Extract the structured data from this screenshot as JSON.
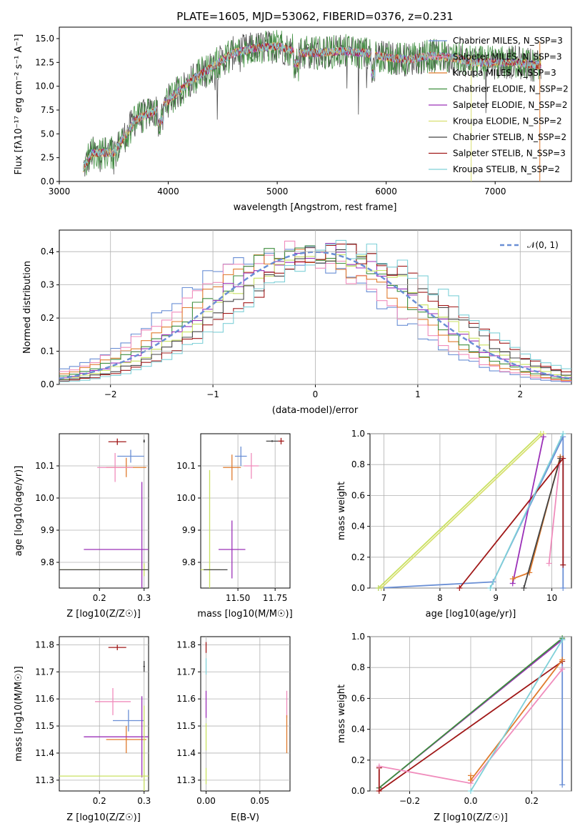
{
  "chart_data": [
    {
      "type": "line",
      "id": "spectrum",
      "title": "PLATE=1605, MJD=53062, FIBERID=0376, z=0.231",
      "xlabel": "wavelength [Angstrom, rest frame]",
      "ylabel": "Flux [fλ10⁻¹⁷ erg cm⁻² s⁻¹ A⁻¹]",
      "xlim": [
        3000,
        7700
      ],
      "ylim": [
        0,
        16.2
      ],
      "xticks": [
        "3000",
        "4000",
        "5000",
        "6000",
        "7000"
      ],
      "yticks": [
        "0.0",
        "2.5",
        "5.0",
        "7.5",
        "10.0",
        "12.5",
        "15.0"
      ],
      "legend_position": "top-right",
      "continuum_x": [
        3200,
        3300,
        3500,
        3700,
        3900,
        4000,
        4200,
        4400,
        4600,
        4800,
        5000,
        5200,
        5400,
        5600,
        5800,
        6000,
        6200,
        6400,
        6600,
        6800,
        7000,
        7200,
        7400
      ],
      "continuum_y": [
        1.0,
        3.0,
        3.0,
        6.5,
        7.5,
        8.5,
        10.5,
        12.0,
        13.5,
        14.0,
        14.2,
        13.5,
        13.5,
        13.7,
        13.5,
        13.0,
        12.8,
        13.2,
        13.0,
        12.5,
        12.5,
        12.5,
        12.2
      ],
      "series": [
        {
          "name": "Chabrier MILES, N_SSP=3",
          "color": "#6a8fd5"
        },
        {
          "name": "Salpeter MILES, N_SSP=3",
          "color": "#f08cbc"
        },
        {
          "name": "Kroupa MILES, N_SSP=3",
          "color": "#e07b2e"
        },
        {
          "name": "Chabrier ELODIE, N_SSP=2",
          "color": "#3e8e3e"
        },
        {
          "name": "Salpeter ELODIE, N_SSP=2",
          "color": "#9b30b8"
        },
        {
          "name": "Kroupa ELODIE, N_SSP=2",
          "color": "#d8e070"
        },
        {
          "name": "Chabrier STELIB, N_SSP=2",
          "color": "#444444"
        },
        {
          "name": "Salpeter STELIB, N_SSP=3",
          "color": "#a01818"
        },
        {
          "name": "Kroupa STELIB, N_SSP=2",
          "color": "#7fd0d8"
        }
      ]
    },
    {
      "type": "line",
      "id": "residuals",
      "xlabel": "(data-model)/error",
      "ylabel": "Normed distribution",
      "xlim": [
        -2.5,
        2.5
      ],
      "ylim": [
        0,
        0.465
      ],
      "xticks": [
        "−2",
        "−1",
        "0",
        "1",
        "2"
      ],
      "yticks": [
        "0.0",
        "0.1",
        "0.2",
        "0.3",
        "0.4"
      ],
      "grid": true,
      "legend_position": "top-right",
      "reference_curve": {
        "name": "𝒩(0, 1)",
        "mean": 0,
        "sigma": 1,
        "color": "#6a8fd5",
        "dash": true
      },
      "histogram_series_colors": [
        "#6a8fd5",
        "#f08cbc",
        "#e07b2e",
        "#3e8e3e",
        "#9b30b8",
        "#c8e060",
        "#444444",
        "#a01818",
        "#7fd0d8"
      ]
    },
    {
      "type": "scatter",
      "id": "age-vs-Z",
      "xlabel": "Z [log10(Z/Z☉)]",
      "ylabel": "age  [log10(age/yr)]",
      "xlim": [
        0.11,
        0.31
      ],
      "ylim": [
        9.72,
        10.2
      ],
      "xticks": [
        "0.2",
        "0.3"
      ],
      "yticks": [
        "9.8",
        "9.9",
        "10.0",
        "10.1"
      ],
      "grid": true,
      "points": [
        {
          "x": 0.24,
          "y": 10.175,
          "xerr": 0.02,
          "yerr": 0.01,
          "color": "#a01818"
        },
        {
          "x": 0.27,
          "y": 10.13,
          "xerr": 0.03,
          "yerr": 0.02,
          "color": "#6a8fd5"
        },
        {
          "x": 0.26,
          "y": 10.095,
          "xerr": 0.045,
          "yerr": 0.03,
          "color": "#e07b2e"
        },
        {
          "x": 0.235,
          "y": 10.095,
          "xerr": 0.04,
          "yerr": 0.045,
          "color": "#f08cbc"
        },
        {
          "x": 0.3,
          "y": 10.177,
          "xerr": 0.002,
          "yerr": 0.005,
          "color": "#444444"
        },
        {
          "x": 0.295,
          "y": 9.84,
          "xerr": 0.13,
          "yerr": 0.21,
          "color": "#9b30b8"
        },
        {
          "x": 0.3,
          "y": 9.777,
          "xerr": 0.19,
          "yerr": 0.02,
          "color": "#c8e060"
        },
        {
          "x": 0.297,
          "y": 9.777,
          "xerr": 0.19,
          "yerr": 0.0,
          "color": "#444444"
        }
      ]
    },
    {
      "type": "scatter",
      "id": "age-vs-mass",
      "xlabel": "mass [log10(M/M☉)]",
      "ylabel": "",
      "xlim": [
        11.25,
        11.85
      ],
      "ylim": [
        9.72,
        10.2
      ],
      "xticks": [
        "11.50",
        "11.75"
      ],
      "yticks": [
        "9.8",
        "9.9",
        "10.0",
        "10.1"
      ],
      "grid": true,
      "points": [
        {
          "x": 11.79,
          "y": 10.177,
          "xerr": 0.02,
          "yerr": 0.01,
          "color": "#a01818"
        },
        {
          "x": 11.73,
          "y": 10.177,
          "xerr": 0.04,
          "yerr": 0.003,
          "color": "#444444"
        },
        {
          "x": 11.52,
          "y": 10.13,
          "xerr": 0.04,
          "yerr": 0.03,
          "color": "#6a8fd5"
        },
        {
          "x": 11.46,
          "y": 10.095,
          "xerr": 0.06,
          "yerr": 0.04,
          "color": "#e07b2e"
        },
        {
          "x": 11.59,
          "y": 10.1,
          "xerr": 0.05,
          "yerr": 0.04,
          "color": "#f08cbc"
        },
        {
          "x": 11.46,
          "y": 9.84,
          "xerr": 0.09,
          "yerr": 0.09,
          "color": "#9b30b8"
        },
        {
          "x": 11.31,
          "y": 9.777,
          "xerr": 0.07,
          "yerr": 0.31,
          "color": "#c8e060"
        },
        {
          "x": 11.35,
          "y": 9.777,
          "xerr": 0.08,
          "yerr": 0.0,
          "color": "#444444"
        }
      ]
    },
    {
      "type": "line",
      "id": "massweight-vs-age",
      "xlabel": "age  [log10(age/yr)]",
      "ylabel": "mass weight",
      "xlim": [
        6.75,
        10.35
      ],
      "ylim": [
        0,
        1.0
      ],
      "xticks": [
        "7",
        "8",
        "9",
        "10"
      ],
      "yticks": [
        "0.0",
        "0.2",
        "0.4",
        "0.6",
        "0.8",
        "1.0"
      ],
      "grid": true,
      "series": [
        {
          "color": "#6a8fd5",
          "x": [
            6.9,
            8.95,
            10.2,
            10.2
          ],
          "y": [
            0.0,
            0.04,
            0.98,
            0.0
          ]
        },
        {
          "color": "#c8e060",
          "x": [
            6.9,
            9.8
          ],
          "y": [
            0.0,
            1.0
          ]
        },
        {
          "color": "#d8e070",
          "x": [
            6.95,
            9.85
          ],
          "y": [
            0.0,
            1.0
          ]
        },
        {
          "color": "#9b30b8",
          "x": [
            9.3,
            9.85
          ],
          "y": [
            0.03,
            0.98
          ]
        },
        {
          "color": "#e07b2e",
          "x": [
            9.3,
            9.6,
            10.15
          ],
          "y": [
            0.06,
            0.1,
            0.85
          ]
        },
        {
          "color": "#f08cbc",
          "x": [
            9.95,
            10.15
          ],
          "y": [
            0.16,
            0.84
          ]
        },
        {
          "color": "#444444",
          "x": [
            9.5,
            10.15
          ],
          "y": [
            0.0,
            0.84
          ]
        },
        {
          "color": "#a01818",
          "x": [
            8.35,
            10.2,
            10.2
          ],
          "y": [
            0.0,
            0.84,
            0.15
          ]
        },
        {
          "color": "#7fd0d8",
          "x": [
            8.9,
            10.2
          ],
          "y": [
            0.0,
            1.0
          ]
        }
      ]
    },
    {
      "type": "scatter",
      "id": "mass-vs-Z",
      "xlabel": "Z [log10(Z/Z☉)]",
      "ylabel": "mass [log10(M/M☉)]",
      "xlim": [
        0.11,
        0.31
      ],
      "ylim": [
        11.26,
        11.83
      ],
      "xticks": [
        "0.2",
        "0.3"
      ],
      "yticks": [
        "11.3",
        "11.4",
        "11.5",
        "11.6",
        "11.7",
        "11.8"
      ],
      "grid": true,
      "points": [
        {
          "x": 0.24,
          "y": 11.79,
          "xerr": 0.02,
          "yerr": 0.01,
          "color": "#a01818"
        },
        {
          "x": 0.3,
          "y": 11.72,
          "xerr": 0.002,
          "yerr": 0.02,
          "color": "#444444"
        },
        {
          "x": 0.265,
          "y": 11.52,
          "xerr": 0.035,
          "yerr": 0.04,
          "color": "#6a8fd5"
        },
        {
          "x": 0.26,
          "y": 11.45,
          "xerr": 0.045,
          "yerr": 0.05,
          "color": "#e07b2e"
        },
        {
          "x": 0.23,
          "y": 11.59,
          "xerr": 0.04,
          "yerr": 0.05,
          "color": "#f08cbc"
        },
        {
          "x": 0.295,
          "y": 11.46,
          "xerr": 0.13,
          "yerr": 0.15,
          "color": "#9b30b8"
        },
        {
          "x": 0.3,
          "y": 11.315,
          "xerr": 0.19,
          "yerr": 0.26,
          "color": "#c8e060"
        }
      ]
    },
    {
      "type": "scatter",
      "id": "mass-vs-EBV",
      "xlabel": "E(B-V)",
      "ylabel": "",
      "xlim": [
        -0.005,
        0.078
      ],
      "ylim": [
        11.26,
        11.83
      ],
      "xticks": [
        "0.00",
        "0.05"
      ],
      "yticks": [
        "11.3",
        "11.4",
        "11.5",
        "11.6",
        "11.7",
        "11.8"
      ],
      "grid": true,
      "points": [
        {
          "x": 0.0,
          "y": 11.79,
          "xerr": 0.0,
          "yerr": 0.02,
          "color": "#a01818"
        },
        {
          "x": 0.0,
          "y": 11.72,
          "xerr": 0.0,
          "yerr": 0.03,
          "color": "#7fd0d8"
        },
        {
          "x": 0.0,
          "y": 11.58,
          "xerr": 0.0,
          "yerr": 0.05,
          "color": "#9b30b8"
        },
        {
          "x": 0.0,
          "y": 11.46,
          "xerr": 0.0,
          "yerr": 0.05,
          "color": "#c8e060"
        },
        {
          "x": 0.0,
          "y": 11.315,
          "xerr": 0.0,
          "yerr": 0.03,
          "color": "#c8e060"
        },
        {
          "x": 0.075,
          "y": 11.58,
          "xerr": 0.0,
          "yerr": 0.05,
          "color": "#f08cbc"
        },
        {
          "x": 0.075,
          "y": 11.47,
          "xerr": 0.0,
          "yerr": 0.07,
          "color": "#e07b2e"
        }
      ]
    },
    {
      "type": "line",
      "id": "massweight-vs-Z",
      "xlabel": "Z [log10(Z/Z☉)]",
      "ylabel": "mass weight",
      "xlim": [
        -0.33,
        0.33
      ],
      "ylim": [
        0,
        1.0
      ],
      "xticks": [
        "−0.2",
        "0.0",
        "0.2"
      ],
      "yticks": [
        "0.0",
        "0.2",
        "0.4",
        "0.6",
        "0.8",
        "1.0"
      ],
      "grid": true,
      "series": [
        {
          "color": "#9b30b8",
          "x": [
            -0.3,
            0.3
          ],
          "y": [
            0.02,
            0.98
          ]
        },
        {
          "color": "#3e8e3e",
          "x": [
            -0.3,
            0.3
          ],
          "y": [
            0.02,
            0.99
          ]
        },
        {
          "color": "#6a8fd5",
          "x": [
            0.3,
            0.3
          ],
          "y": [
            0.98,
            0.04
          ]
        },
        {
          "color": "#a01818",
          "x": [
            -0.3,
            -0.3,
            0.3
          ],
          "y": [
            0.15,
            0.0,
            0.84
          ]
        },
        {
          "color": "#f08cbc",
          "x": [
            -0.3,
            0.0,
            0.3
          ],
          "y": [
            0.16,
            0.05,
            0.79
          ]
        },
        {
          "color": "#e07b2e",
          "x": [
            0.0,
            0.0,
            0.3
          ],
          "y": [
            0.1,
            0.07,
            0.85
          ]
        },
        {
          "color": "#7fd0d8",
          "x": [
            0.0,
            0.3
          ],
          "y": [
            0.0,
            0.98
          ]
        }
      ]
    }
  ]
}
